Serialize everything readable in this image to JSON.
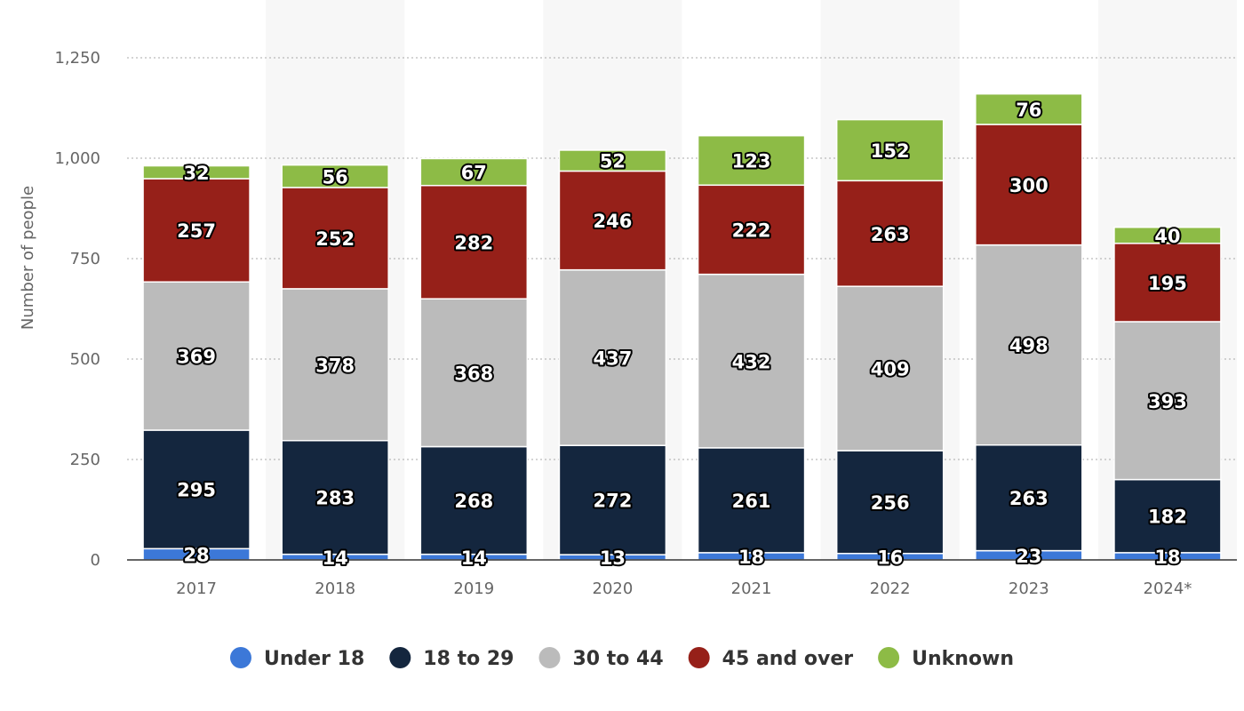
{
  "chart_data": {
    "type": "bar",
    "stacked": true,
    "categories": [
      "2017",
      "2018",
      "2019",
      "2020",
      "2021",
      "2022",
      "2023",
      "2024*"
    ],
    "series": [
      {
        "name": "Under 18",
        "color": "#3c78d8",
        "values": [
          28,
          14,
          14,
          13,
          18,
          16,
          23,
          18
        ]
      },
      {
        "name": "18 to 29",
        "color": "#14263e",
        "values": [
          295,
          283,
          268,
          272,
          261,
          256,
          263,
          182
        ]
      },
      {
        "name": "30 to 44",
        "color": "#bbbbbb",
        "values": [
          369,
          378,
          368,
          437,
          432,
          409,
          498,
          393
        ]
      },
      {
        "name": "45 and over",
        "color": "#962019",
        "values": [
          257,
          252,
          282,
          246,
          222,
          263,
          300,
          195
        ]
      },
      {
        "name": "Unknown",
        "color": "#8dbb46",
        "values": [
          32,
          56,
          67,
          52,
          123,
          152,
          76,
          40
        ]
      }
    ],
    "ylabel": "Number of people",
    "ylim": [
      0,
      1250
    ],
    "yticks": [
      0,
      250,
      500,
      750,
      1000,
      1250
    ],
    "ytick_labels": [
      "0",
      "250",
      "500",
      "750",
      "1,000",
      "1,250"
    ],
    "grid": true,
    "legend_position": "bottom"
  }
}
